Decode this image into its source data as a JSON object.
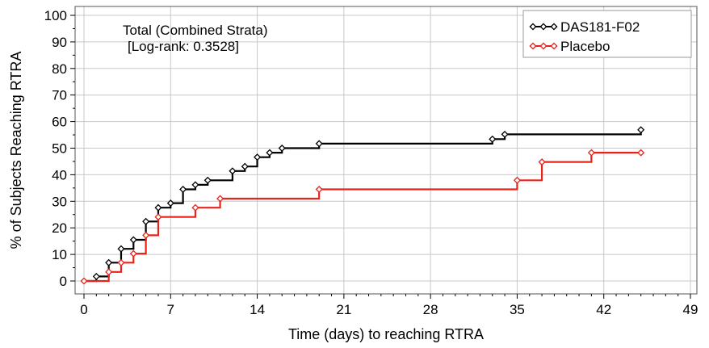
{
  "chart_data": {
    "type": "line",
    "step": true,
    "xlabel": "Time (days) to reaching RTRA",
    "ylabel": "% of Subjects Reaching RTRA",
    "xlim": [
      0,
      49
    ],
    "ylim": [
      0,
      100
    ],
    "xticks": [
      0,
      7,
      14,
      21,
      28,
      35,
      42,
      49
    ],
    "yticks": [
      0,
      10,
      20,
      30,
      40,
      50,
      60,
      70,
      80,
      90,
      100
    ],
    "grid": true,
    "legend_position": "top-right",
    "annotations": [
      "Total (Combined Strata)",
      "[Log-rank: 0.3528]"
    ],
    "series": [
      {
        "name": "DAS181-F02",
        "color": "#000000",
        "marker": "diamond",
        "x": [
          1,
          2,
          3,
          4,
          5,
          6,
          7,
          8,
          9,
          10,
          12,
          13,
          14,
          15,
          16,
          19,
          33,
          34,
          45
        ],
        "y": [
          1.7,
          6.9,
          12.1,
          15.5,
          22.4,
          27.6,
          29.3,
          34.5,
          36.2,
          37.9,
          41.4,
          43.1,
          46.6,
          48.3,
          50.0,
          51.7,
          53.4,
          55.2,
          56.9
        ]
      },
      {
        "name": "Placebo",
        "color": "#e8231a",
        "marker": "diamond",
        "x": [
          0,
          2,
          3,
          4,
          5,
          6,
          9,
          11,
          19,
          35,
          37,
          41,
          45
        ],
        "y": [
          0,
          3.4,
          6.9,
          10.3,
          17.2,
          24.1,
          27.6,
          31.0,
          34.5,
          37.9,
          44.8,
          48.3,
          48.3
        ]
      }
    ]
  }
}
